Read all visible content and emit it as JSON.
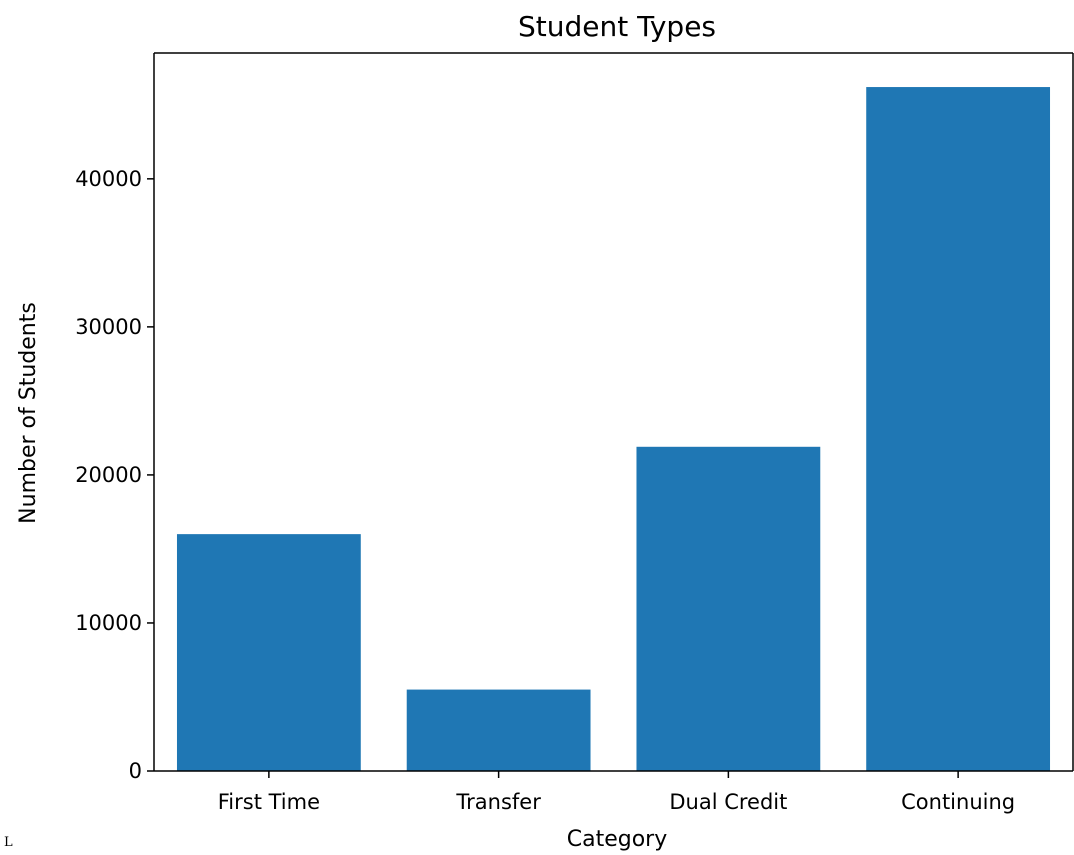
{
  "chart_data": {
    "type": "bar",
    "title": "Student Types",
    "xlabel": "Category",
    "ylabel": "Number of Students",
    "categories": [
      "First Time",
      "Transfer",
      "Dual Credit",
      "Continuing"
    ],
    "values": [
      16000,
      5500,
      21900,
      46200
    ],
    "ylim": [
      0,
      48500
    ],
    "yticks": [
      0,
      10000,
      20000,
      30000,
      40000
    ],
    "grid": false,
    "bar_color": "#1f77b4"
  },
  "corner_text": "L"
}
